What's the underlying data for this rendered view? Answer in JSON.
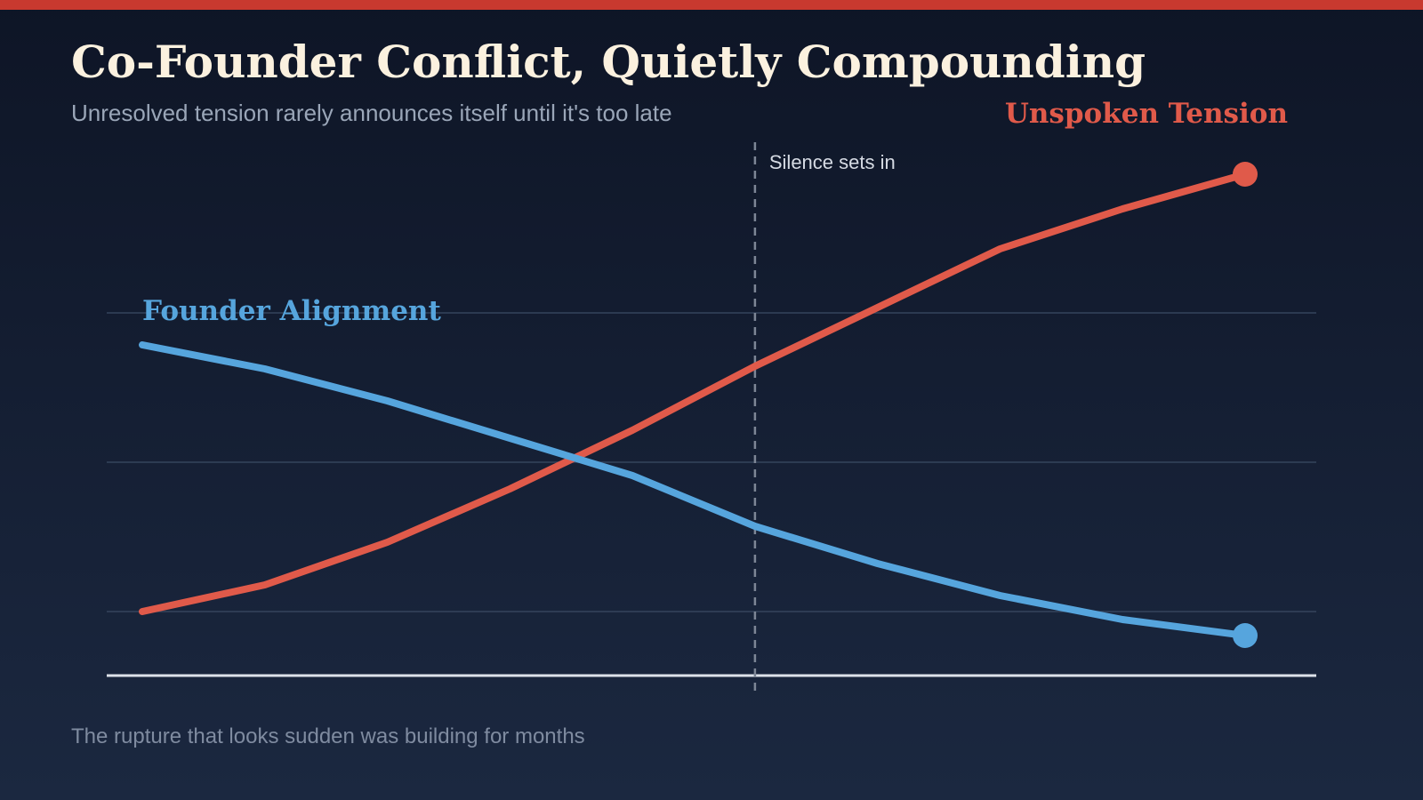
{
  "header": {
    "title": "Co-Founder Conflict, Quietly Compounding",
    "subtitle": "Unresolved tension rarely announces itself until it's too late"
  },
  "footer": {
    "note": "The rupture that looks sudden was building for months"
  },
  "colors": {
    "accent_bar": "#c8392f",
    "title_text": "#fbf1df",
    "tension": "#e05a4a",
    "alignment": "#56a5dd",
    "grid": "#35445c",
    "baseline": "#dde2ea",
    "annotation_line": "#7d8696"
  },
  "chart_data": {
    "type": "line",
    "x": [
      0,
      1,
      2,
      3,
      4,
      5,
      6,
      7,
      8,
      9
    ],
    "xlim": [
      0,
      9
    ],
    "ylim": [
      0,
      100
    ],
    "grid": true,
    "gridlines_y": [
      12,
      40,
      68
    ],
    "series": [
      {
        "name": "Unspoken Tension",
        "color": "#e05a4a",
        "values": [
          12,
          17,
          25,
          35,
          46,
          58,
          69,
          80,
          87.5,
          94
        ]
      },
      {
        "name": "Founder Alignment",
        "color": "#56a5dd",
        "values": [
          62,
          57.5,
          51.5,
          44.5,
          37.5,
          28,
          21,
          15,
          10.5,
          7.5
        ]
      }
    ],
    "annotations": [
      {
        "x": 5,
        "label": "Silence sets in"
      }
    ]
  }
}
